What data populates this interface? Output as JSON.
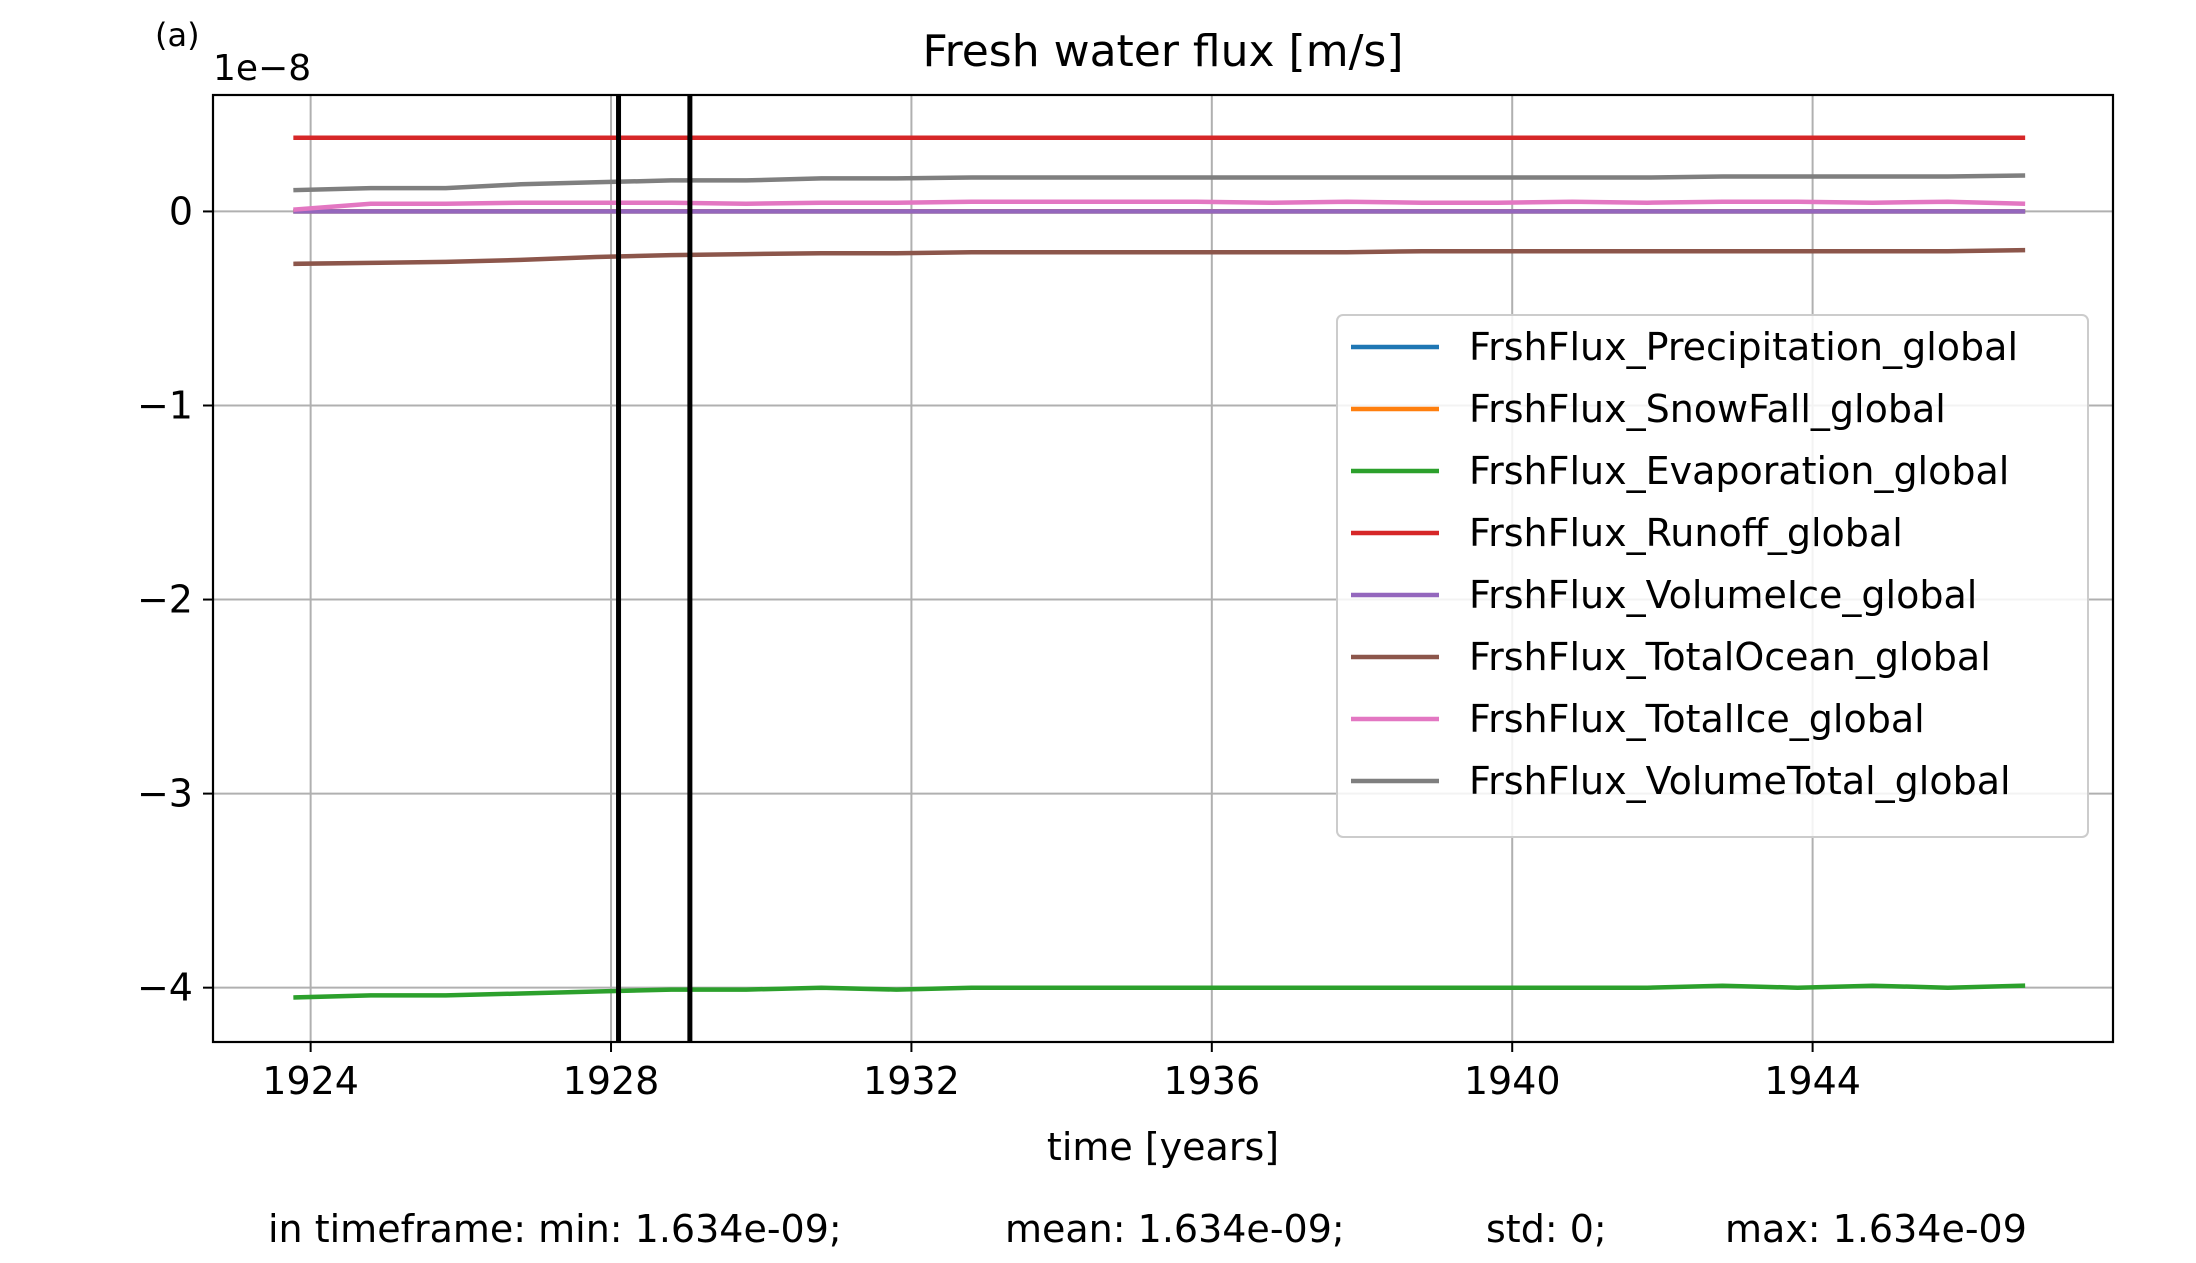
{
  "panel_label": "(a)",
  "footer": {
    "min": "in timeframe: min: 1.634e-09;",
    "mean": "mean: 1.634e-09;",
    "std": "std: 0;",
    "max": "max: 1.634e-09"
  },
  "chart_data": {
    "type": "line",
    "title": "Fresh water flux [m/s]",
    "xlabel": "time [years]",
    "ylabel": "",
    "y_offset_text": "1e−8",
    "xlim": [
      1922.7,
      1948.0
    ],
    "ylim": [
      -4.28,
      0.6
    ],
    "xticks": [
      1924,
      1928,
      1932,
      1936,
      1940,
      1944
    ],
    "yticks": [
      0,
      -1,
      -2,
      -3,
      -4
    ],
    "ytick_labels": [
      "0",
      "−1",
      "−2",
      "−3",
      "−4"
    ],
    "grid": true,
    "legend_position": "center-right",
    "vertical_lines": [
      1928.1,
      1929.05
    ],
    "x": [
      1923.8,
      1924.8,
      1925.8,
      1926.8,
      1927.8,
      1928.8,
      1929.8,
      1930.8,
      1931.8,
      1932.8,
      1933.8,
      1934.8,
      1935.8,
      1936.8,
      1937.8,
      1938.8,
      1939.8,
      1940.8,
      1941.8,
      1942.8,
      1943.8,
      1944.8,
      1945.8,
      1946.8
    ],
    "series": [
      {
        "name": "FrshFlux_Precipitation_global",
        "color": "#1f77b4",
        "values": [
          0.0,
          0.0,
          0.0,
          0.0,
          0.0,
          0.0,
          0.0,
          0.0,
          0.0,
          0.0,
          0.0,
          0.0,
          0.0,
          0.0,
          0.0,
          0.0,
          0.0,
          0.0,
          0.0,
          0.0,
          0.0,
          0.0,
          0.0,
          0.0
        ]
      },
      {
        "name": "FrshFlux_SnowFall_global",
        "color": "#ff7f0e",
        "values": [
          0.0,
          0.0,
          0.0,
          0.0,
          0.0,
          0.0,
          0.0,
          0.0,
          0.0,
          0.0,
          0.0,
          0.0,
          0.0,
          0.0,
          0.0,
          0.0,
          0.0,
          0.0,
          0.0,
          0.0,
          0.0,
          0.0,
          0.0,
          0.0
        ]
      },
      {
        "name": "FrshFlux_Evaporation_global",
        "color": "#2ca02c",
        "values": [
          -4.05,
          -4.04,
          -4.04,
          -4.03,
          -4.02,
          -4.01,
          -4.01,
          -4.0,
          -4.01,
          -4.0,
          -4.0,
          -4.0,
          -4.0,
          -4.0,
          -4.0,
          -4.0,
          -4.0,
          -4.0,
          -4.0,
          -3.99,
          -4.0,
          -3.99,
          -4.0,
          -3.99
        ]
      },
      {
        "name": "FrshFlux_Runoff_global",
        "color": "#d62728",
        "values": [
          0.38,
          0.38,
          0.38,
          0.38,
          0.38,
          0.38,
          0.38,
          0.38,
          0.38,
          0.38,
          0.38,
          0.38,
          0.38,
          0.38,
          0.38,
          0.38,
          0.38,
          0.38,
          0.38,
          0.38,
          0.38,
          0.38,
          0.38,
          0.38
        ]
      },
      {
        "name": "FrshFlux_VolumeIce_global",
        "color": "#9467bd",
        "values": [
          0.0,
          0.0,
          0.0,
          0.0,
          0.0,
          0.0,
          0.0,
          0.0,
          0.0,
          0.0,
          0.0,
          0.0,
          0.0,
          0.0,
          0.0,
          0.0,
          0.0,
          0.0,
          0.0,
          0.0,
          0.0,
          0.0,
          0.0,
          0.0
        ]
      },
      {
        "name": "FrshFlux_TotalOcean_global",
        "color": "#8c564b",
        "values": [
          -0.27,
          -0.265,
          -0.26,
          -0.25,
          -0.235,
          -0.225,
          -0.22,
          -0.215,
          -0.215,
          -0.21,
          -0.21,
          -0.21,
          -0.21,
          -0.21,
          -0.21,
          -0.205,
          -0.205,
          -0.205,
          -0.205,
          -0.205,
          -0.205,
          -0.205,
          -0.205,
          -0.2
        ]
      },
      {
        "name": "FrshFlux_TotalIce_global",
        "color": "#e377c2",
        "values": [
          0.01,
          0.04,
          0.04,
          0.045,
          0.045,
          0.045,
          0.04,
          0.045,
          0.045,
          0.05,
          0.05,
          0.05,
          0.05,
          0.045,
          0.05,
          0.045,
          0.045,
          0.05,
          0.045,
          0.05,
          0.05,
          0.045,
          0.05,
          0.04
        ]
      },
      {
        "name": "FrshFlux_VolumeTotal_global",
        "color": "#7f7f7f",
        "values": [
          0.11,
          0.12,
          0.12,
          0.14,
          0.15,
          0.16,
          0.16,
          0.17,
          0.17,
          0.175,
          0.175,
          0.175,
          0.175,
          0.175,
          0.175,
          0.175,
          0.175,
          0.175,
          0.175,
          0.18,
          0.18,
          0.18,
          0.18,
          0.185
        ]
      }
    ]
  }
}
